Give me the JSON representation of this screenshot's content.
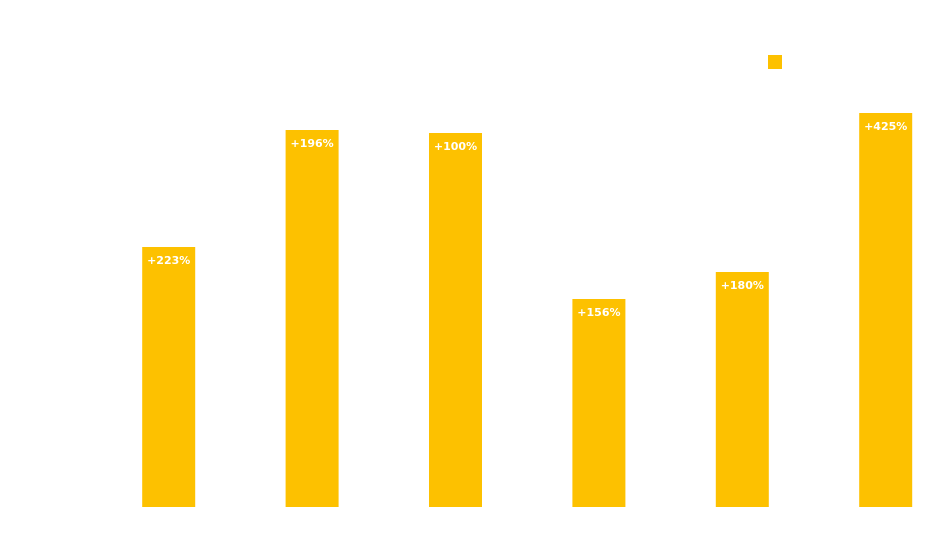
{
  "chart_data": {
    "type": "bar",
    "categories": [
      null,
      null,
      null,
      null,
      null,
      null
    ],
    "values": [
      260,
      377,
      374,
      208,
      235,
      394
    ],
    "bar_labels": [
      "+223%",
      "+196%",
      "+100%",
      "+156%",
      "+180%",
      "+425%"
    ],
    "color": "#fdc100",
    "ylim": [
      0,
      400
    ],
    "legend": "upper right"
  }
}
